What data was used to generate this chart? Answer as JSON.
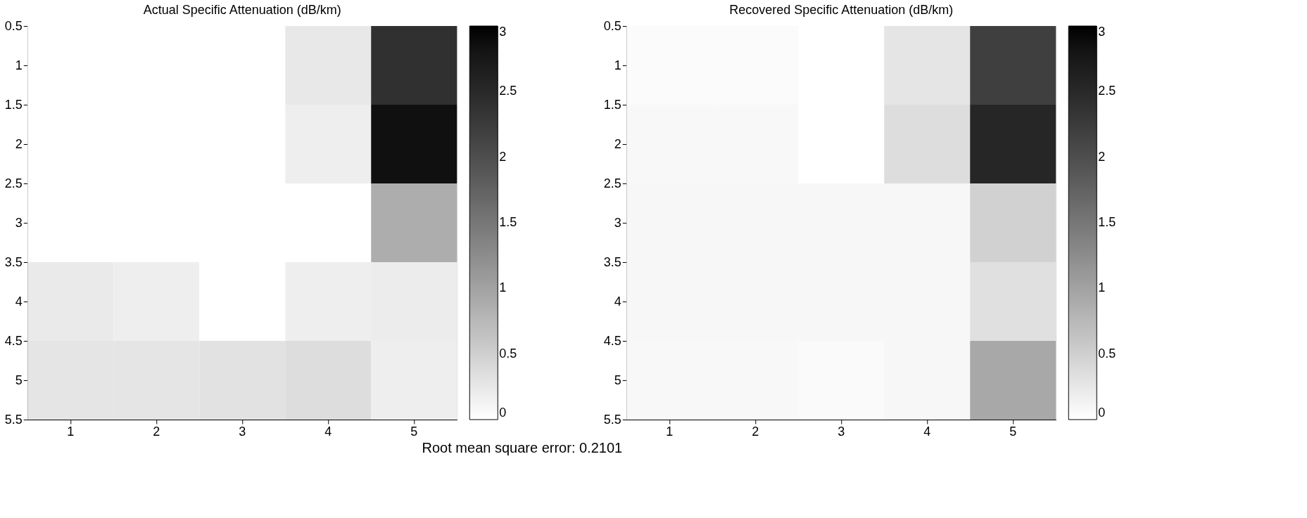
{
  "chart_data": [
    {
      "type": "heatmap",
      "title": "Actual Specific Attenuation (dB/km)",
      "categories": [
        "1",
        "2",
        "3",
        "4",
        "5"
      ],
      "cells": [
        [
          0,
          0,
          0,
          0.24,
          2.4
        ],
        [
          0,
          0,
          0,
          0.18,
          2.86
        ],
        [
          0,
          0,
          0,
          0,
          0.88
        ],
        [
          0.22,
          0.18,
          0,
          0.18,
          0.2
        ],
        [
          0.27,
          0.27,
          0.3,
          0.36,
          0.18
        ]
      ],
      "ylim": [
        5.5,
        0.5
      ],
      "yticks": [
        0.5,
        1,
        1.5,
        2,
        2.5,
        3,
        3.5,
        4,
        4.5,
        5,
        5.5
      ],
      "clim": [
        0,
        3
      ],
      "cticks": [
        0,
        0.5,
        1,
        1.5,
        2,
        2.5,
        3
      ],
      "grid": false,
      "annotations": [
        "Root mean square error: 0.2101"
      ]
    },
    {
      "type": "heatmap",
      "title": "Recovered Specific Attenuation (dB/km)",
      "categories": [
        "1",
        "2",
        "3",
        "4",
        "5"
      ],
      "cells": [
        [
          0.04,
          0.04,
          0,
          0.27,
          2.2
        ],
        [
          0.07,
          0.07,
          0,
          0.36,
          2.55
        ],
        [
          0.08,
          0.08,
          0.08,
          0.08,
          0.48
        ],
        [
          0.08,
          0.08,
          0.08,
          0.08,
          0.32
        ],
        [
          0.07,
          0.07,
          0.05,
          0.08,
          0.93
        ]
      ],
      "ylim": [
        5.5,
        0.5
      ],
      "yticks": [
        0.5,
        1,
        1.5,
        2,
        2.5,
        3,
        3.5,
        4,
        4.5,
        5,
        5.5
      ],
      "clim": [
        0,
        3
      ],
      "cticks": [
        0,
        0.5,
        1,
        1.5,
        2,
        2.5,
        3
      ],
      "grid": false
    }
  ]
}
